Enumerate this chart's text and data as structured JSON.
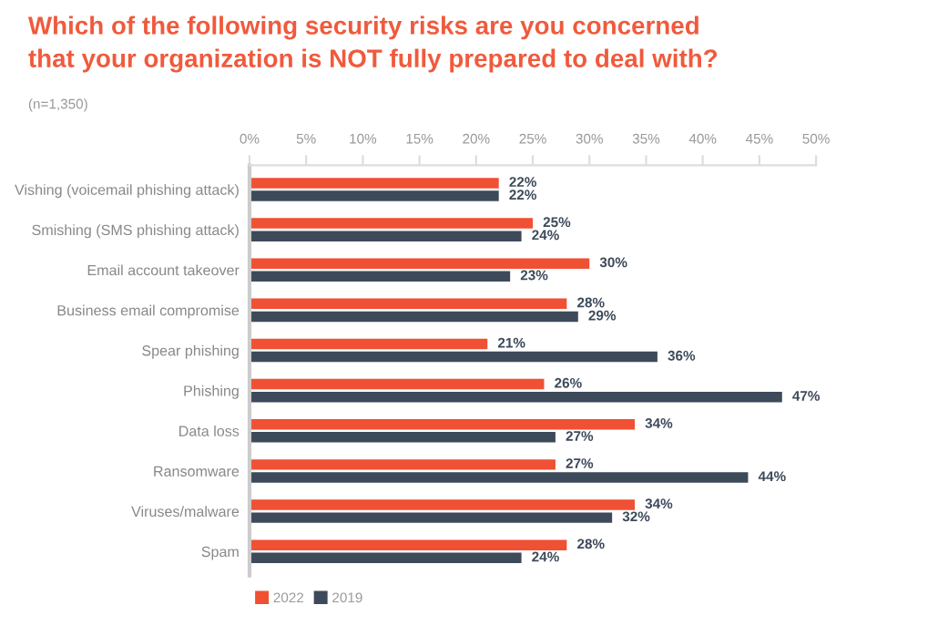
{
  "chart_data": {
    "type": "bar",
    "orientation": "horizontal",
    "title": "Which of the following security risks are you concerned\nthat your organization is NOT fully prepared to deal with?",
    "subtitle": "(n=1,350)",
    "categories": [
      "Vishing (voicemail phishing attack)",
      "Smishing (SMS phishing attack)",
      "Email account takeover",
      "Business email compromise",
      "Spear phishing",
      "Phishing",
      "Data loss",
      "Ransomware",
      "Viruses/malware",
      "Spam"
    ],
    "series": [
      {
        "name": "2022",
        "color": "#f05033",
        "values": [
          22,
          25,
          30,
          28,
          21,
          26,
          34,
          27,
          34,
          28
        ],
        "value_labels": [
          "22%",
          "25%",
          "30%",
          "28%",
          "21%",
          "26%",
          "34%",
          "27%",
          "34%",
          "28%"
        ]
      },
      {
        "name": "2019",
        "color": "#3d4a5a",
        "values": [
          22,
          24,
          23,
          29,
          36,
          47,
          27,
          44,
          32,
          24
        ],
        "value_labels": [
          "22%",
          "24%",
          "23%",
          "29%",
          "36%",
          "47%",
          "27%",
          "44%",
          "32%",
          "24%"
        ]
      }
    ],
    "xlim": [
      0,
      50
    ],
    "xticks": [
      {
        "value": 0,
        "label": "0%"
      },
      {
        "value": 5,
        "label": "5%"
      },
      {
        "value": 10,
        "label": "10%"
      },
      {
        "value": 15,
        "label": "15%"
      },
      {
        "value": 20,
        "label": "20%"
      },
      {
        "value": 25,
        "label": "25%"
      },
      {
        "value": 30,
        "label": "30%"
      },
      {
        "value": 35,
        "label": "35%"
      },
      {
        "value": 40,
        "label": "40%"
      },
      {
        "value": 45,
        "label": "45%"
      },
      {
        "value": 50,
        "label": "50%"
      }
    ],
    "grid": false,
    "legend": "bottom left"
  }
}
